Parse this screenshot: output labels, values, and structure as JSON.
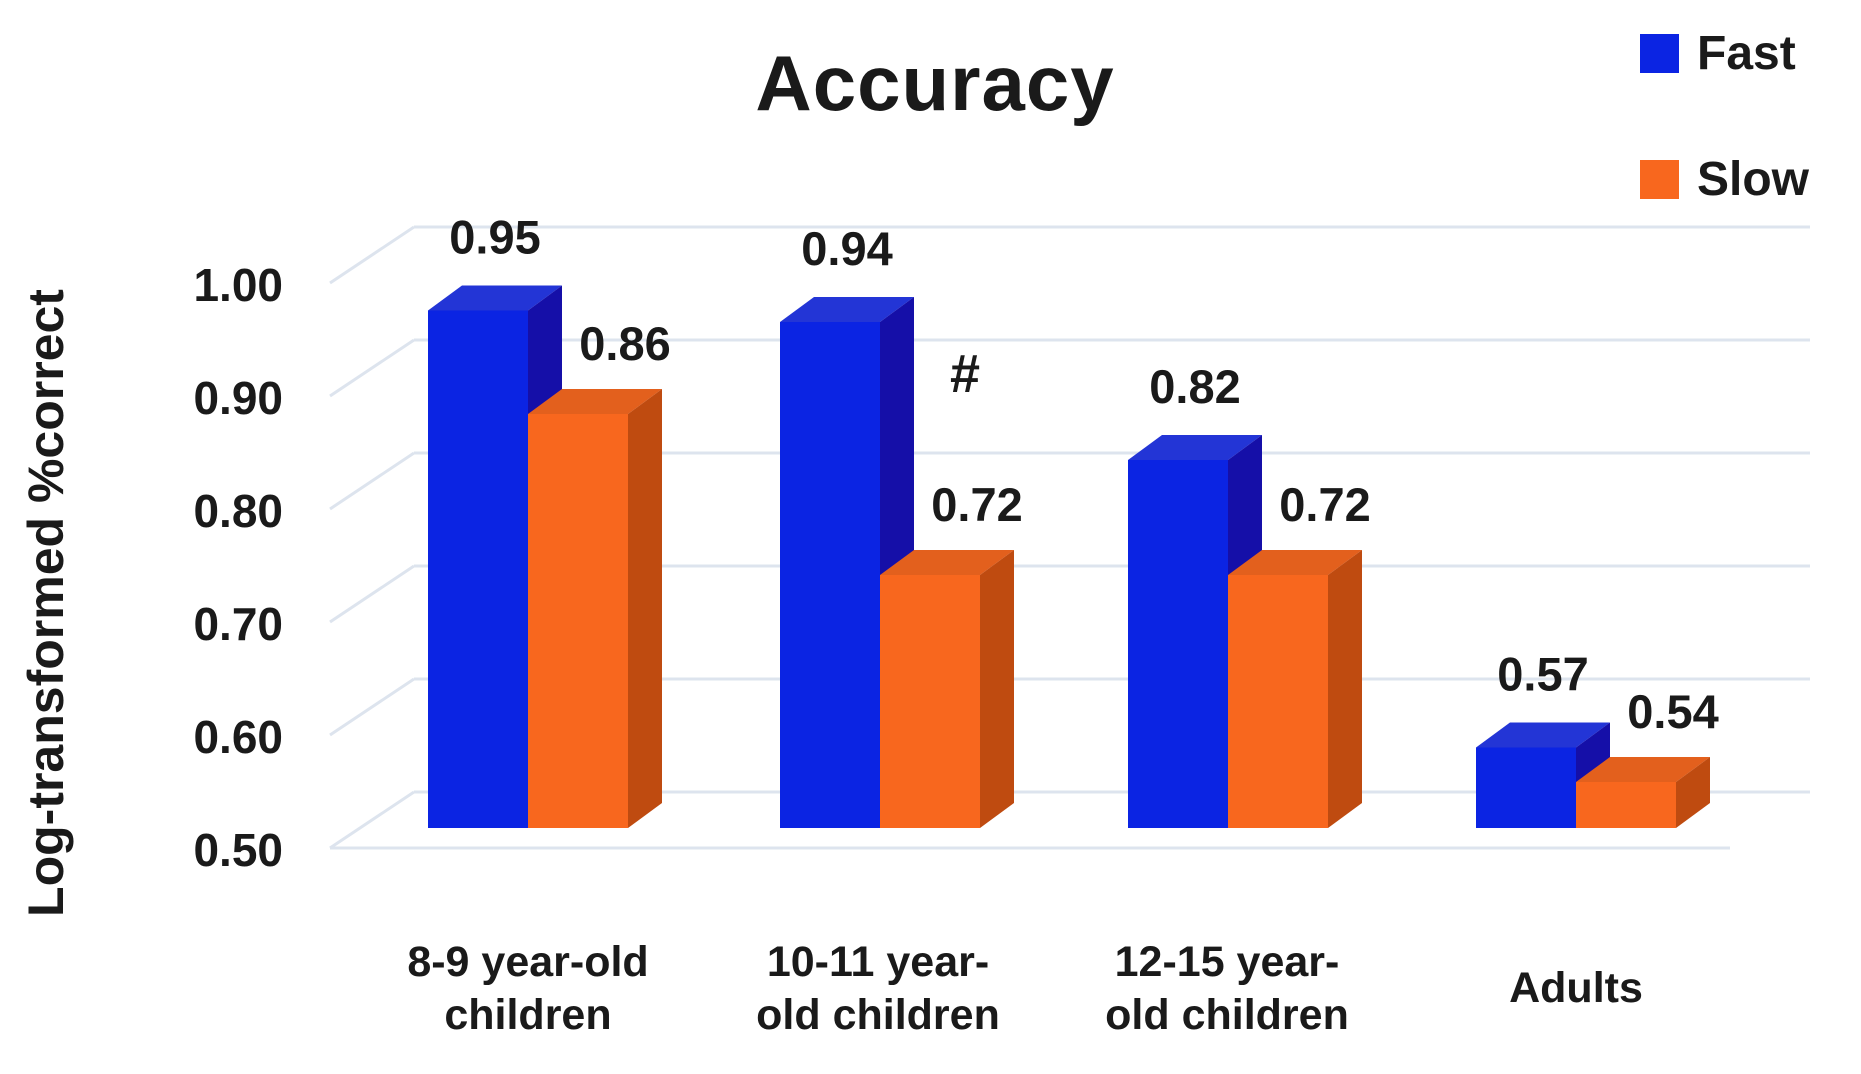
{
  "title": "Accuracy",
  "y_axis": {
    "title": "Log-transformed %correct",
    "tick_labels": [
      "1.00",
      "0.90",
      "0.80",
      "0.70",
      "0.60",
      "0.50"
    ]
  },
  "legend": {
    "items": [
      {
        "label": "Fast",
        "color": "#0b24e3"
      },
      {
        "label": "Slow",
        "color": "#f8671e"
      }
    ]
  },
  "colors": {
    "fast_front": "#0b24e3",
    "fast_top": "#2335d6",
    "fast_side": "#150fa8",
    "slow_front": "#f8671e",
    "slow_top": "#e3601d",
    "slow_side": "#bf4b10",
    "gridline": "#dde4ee",
    "text": "#1a1a1a"
  },
  "chart_data": {
    "type": "bar",
    "style": "3d-clustered-column",
    "title": "Accuracy",
    "ylabel": "Log-transformed %correct",
    "ylim": [
      0.5,
      1.0
    ],
    "ytick_step": 0.1,
    "grid": true,
    "legend_position": "top-right",
    "categories": [
      "8-9 year-old children",
      "10-11 year-old children",
      "12-15 year-old children",
      "Adults"
    ],
    "category_label_lines": [
      [
        "8-9 year-old",
        "children"
      ],
      [
        "10-11 year-",
        "old children"
      ],
      [
        "12-15 year-",
        "old children"
      ],
      [
        "Adults"
      ]
    ],
    "series": [
      {
        "name": "Fast",
        "values": [
          0.95,
          0.94,
          0.82,
          0.57
        ],
        "labels": [
          "0.95",
          "0.94",
          "0.82",
          "0.57"
        ]
      },
      {
        "name": "Slow",
        "values": [
          0.86,
          0.72,
          0.72,
          0.54
        ],
        "labels": [
          "0.86",
          "0.72",
          "0.72",
          "0.54"
        ]
      }
    ],
    "annotations": [
      {
        "text": "#",
        "category": "10-11 year-old children",
        "meaning": "significance marker"
      }
    ]
  }
}
